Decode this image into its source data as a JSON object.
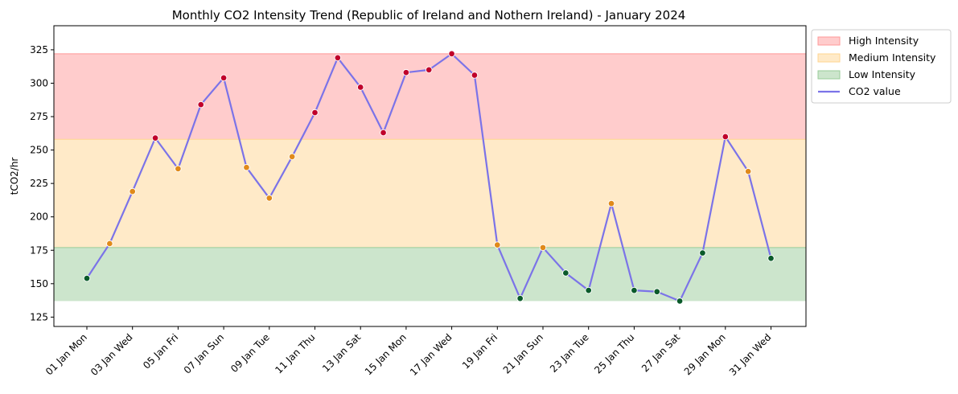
{
  "chart_data": {
    "type": "line",
    "title": "Monthly CO2 Intensity Trend (Republic of Ireland and Nothern Ireland) - January 2024",
    "xlabel": "",
    "ylabel": "tCO2/hr",
    "ylim": [
      118,
      343
    ],
    "yticks": [
      125,
      150,
      175,
      200,
      225,
      250,
      275,
      300,
      325
    ],
    "x": [
      "01 Jan Mon",
      "02 Jan Tue",
      "03 Jan Wed",
      "04 Jan Thu",
      "05 Jan Fri",
      "06 Jan Sat",
      "07 Jan Sun",
      "08 Jan Mon",
      "09 Jan Tue",
      "10 Jan Wed",
      "11 Jan Thu",
      "12 Jan Fri",
      "13 Jan Sat",
      "14 Jan Sun",
      "15 Jan Mon",
      "16 Jan Tue",
      "17 Jan Wed",
      "18 Jan Thu",
      "19 Jan Fri",
      "20 Jan Sat",
      "21 Jan Sun",
      "22 Jan Mon",
      "23 Jan Tue",
      "24 Jan Wed",
      "25 Jan Thu",
      "26 Jan Fri",
      "27 Jan Sat",
      "28 Jan Sun",
      "29 Jan Mon",
      "30 Jan Tue",
      "31 Jan Wed"
    ],
    "xtick_labels": [
      "01 Jan Mon",
      "03 Jan Wed",
      "05 Jan Fri",
      "07 Jan Sun",
      "09 Jan Tue",
      "11 Jan Thu",
      "13 Jan Sat",
      "15 Jan Mon",
      "17 Jan Wed",
      "19 Jan Fri",
      "21 Jan Sun",
      "23 Jan Tue",
      "25 Jan Thu",
      "27 Jan Sat",
      "29 Jan Mon",
      "31 Jan Wed"
    ],
    "series": [
      {
        "name": "CO2 value",
        "color": "#7b73e8",
        "values": [
          154,
          180,
          219,
          259,
          236,
          284,
          304,
          237,
          214,
          245,
          278,
          319,
          297,
          263,
          308,
          310,
          322,
          306,
          179,
          139,
          177,
          158,
          145,
          210,
          145,
          144,
          137,
          173,
          260,
          234,
          169
        ]
      }
    ],
    "bands": [
      {
        "name": "High Intensity",
        "from": 258,
        "to": 322,
        "color": "#ff9999"
      },
      {
        "name": "Medium Intensity",
        "from": 177,
        "to": 258,
        "color": "#ffd591"
      },
      {
        "name": "Low Intensity",
        "from": 137,
        "to": 177,
        "color": "#99cc99"
      }
    ],
    "point_colors": {
      "high": "#c0002a",
      "medium": "#e08a1a",
      "low": "#0a5a2a"
    },
    "grid": false,
    "legend_position": "outside-top-right"
  }
}
